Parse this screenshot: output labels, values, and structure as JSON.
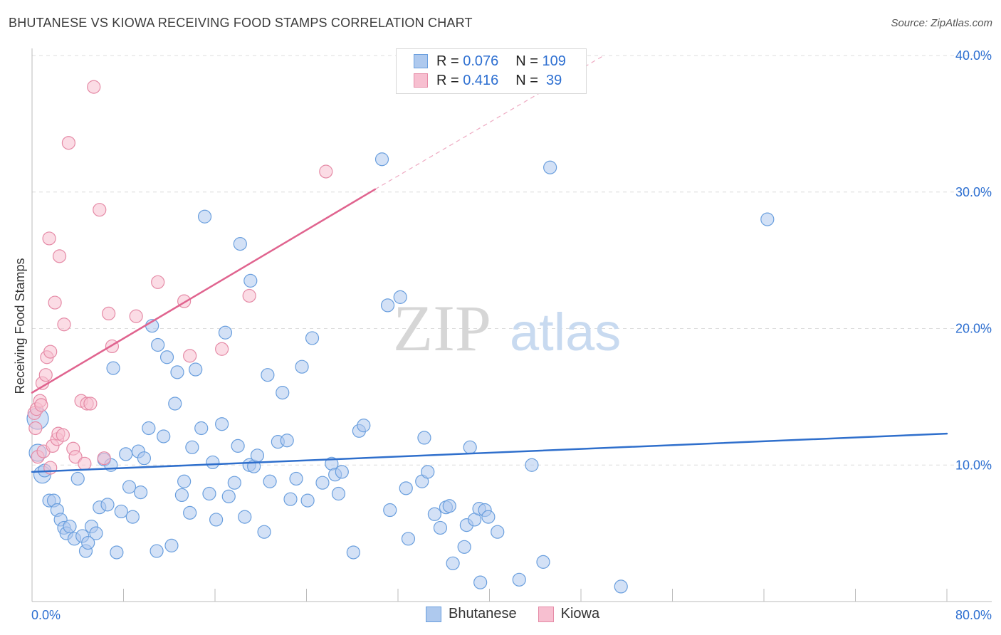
{
  "chart_data": {
    "type": "scatter",
    "title": "BHUTANESE VS KIOWA RECEIVING FOOD STAMPS CORRELATION CHART",
    "source": "Source: ZipAtlas.com",
    "xlabel": "",
    "ylabel": "Receiving Food Stamps",
    "xlim": [
      0,
      80
    ],
    "ylim": [
      0,
      40
    ],
    "x_tick_labels": [
      "0.0%",
      "80.0%"
    ],
    "y_ticks": [
      {
        "value": 10,
        "label": "10.0%"
      },
      {
        "value": 20,
        "label": "20.0%"
      },
      {
        "value": 30,
        "label": "30.0%"
      },
      {
        "value": 40,
        "label": "40.0%"
      }
    ],
    "grid": true,
    "watermark": {
      "part1": "ZIP",
      "part2": "atlas"
    },
    "stats": [
      {
        "r_label": "R = ",
        "r_value": "0.076",
        "n_label": "N = ",
        "n_value": "109"
      },
      {
        "r_label": "R = ",
        "r_value": "0.416",
        "n_label": "N = ",
        "n_value": " 39"
      }
    ],
    "series": [
      {
        "name": "Bhutanese",
        "fill": "#aec9ee",
        "stroke": "#6a9fde",
        "line_color": "#2f6fcc",
        "trend": {
          "x0": 0,
          "y0": 9.5,
          "x1": 80,
          "y1": 12.3
        },
        "points": [
          [
            0.5,
            13.4,
            "L"
          ],
          [
            0.5,
            10.9,
            "M"
          ],
          [
            0.9,
            9.3,
            "M"
          ],
          [
            1.1,
            9.6
          ],
          [
            1.5,
            7.4
          ],
          [
            1.9,
            7.4
          ],
          [
            2.2,
            6.7
          ],
          [
            2.5,
            6.0
          ],
          [
            2.8,
            5.4
          ],
          [
            3.0,
            5.0
          ],
          [
            3.3,
            5.5
          ],
          [
            3.7,
            4.6
          ],
          [
            4.0,
            9.0
          ],
          [
            4.4,
            4.8
          ],
          [
            4.7,
            3.7
          ],
          [
            4.9,
            4.3
          ],
          [
            5.2,
            5.5
          ],
          [
            5.6,
            5.0
          ],
          [
            5.9,
            6.9
          ],
          [
            6.3,
            10.4
          ],
          [
            6.6,
            7.1
          ],
          [
            6.9,
            10.0
          ],
          [
            7.1,
            17.1
          ],
          [
            7.4,
            3.6
          ],
          [
            7.8,
            6.6
          ],
          [
            8.2,
            10.8
          ],
          [
            8.5,
            8.4
          ],
          [
            8.8,
            6.2
          ],
          [
            9.3,
            11.0
          ],
          [
            9.5,
            8.0
          ],
          [
            9.8,
            10.5
          ],
          [
            10.2,
            12.7
          ],
          [
            10.5,
            20.2
          ],
          [
            10.9,
            3.7
          ],
          [
            11.0,
            18.8
          ],
          [
            11.8,
            17.9
          ],
          [
            11.5,
            12.1
          ],
          [
            12.2,
            4.1
          ],
          [
            12.5,
            14.5
          ],
          [
            12.7,
            16.8
          ],
          [
            13.1,
            7.8
          ],
          [
            13.3,
            8.8
          ],
          [
            13.8,
            6.5
          ],
          [
            14.0,
            11.3
          ],
          [
            14.3,
            17.0
          ],
          [
            14.8,
            12.7
          ],
          [
            15.1,
            28.2
          ],
          [
            15.5,
            7.9
          ],
          [
            15.8,
            10.2
          ],
          [
            16.1,
            6.0
          ],
          [
            16.6,
            13.0
          ],
          [
            16.9,
            19.7
          ],
          [
            17.2,
            7.7
          ],
          [
            17.7,
            8.7
          ],
          [
            18.0,
            11.4
          ],
          [
            18.2,
            26.2
          ],
          [
            18.6,
            6.2
          ],
          [
            19.1,
            23.5
          ],
          [
            19.0,
            10.0
          ],
          [
            19.4,
            9.9
          ],
          [
            19.7,
            10.7
          ],
          [
            20.3,
            5.1
          ],
          [
            20.6,
            16.6
          ],
          [
            20.8,
            8.8
          ],
          [
            21.5,
            11.7
          ],
          [
            21.9,
            15.3
          ],
          [
            22.3,
            11.8
          ],
          [
            22.6,
            7.5
          ],
          [
            23.1,
            9.0
          ],
          [
            23.6,
            17.2
          ],
          [
            24.1,
            7.4
          ],
          [
            24.5,
            19.3
          ],
          [
            25.4,
            8.7
          ],
          [
            26.2,
            10.1
          ],
          [
            26.5,
            9.3
          ],
          [
            26.8,
            7.9
          ],
          [
            27.1,
            9.5
          ],
          [
            28.1,
            3.6
          ],
          [
            28.6,
            12.5
          ],
          [
            29.0,
            12.9
          ],
          [
            30.6,
            32.4
          ],
          [
            31.1,
            21.7
          ],
          [
            31.3,
            6.7
          ],
          [
            32.2,
            22.3
          ],
          [
            32.7,
            8.3
          ],
          [
            32.9,
            4.6
          ],
          [
            34.3,
            12.0
          ],
          [
            34.1,
            8.8
          ],
          [
            34.6,
            9.5
          ],
          [
            35.2,
            6.4
          ],
          [
            35.7,
            5.4
          ],
          [
            36.2,
            6.9
          ],
          [
            36.5,
            7.0
          ],
          [
            36.8,
            2.8
          ],
          [
            37.8,
            4.0
          ],
          [
            38.0,
            5.6
          ],
          [
            38.3,
            11.3
          ],
          [
            38.7,
            6.0
          ],
          [
            39.1,
            6.8
          ],
          [
            39.2,
            1.4
          ],
          [
            39.6,
            6.7
          ],
          [
            39.9,
            6.2
          ],
          [
            40.7,
            5.1
          ],
          [
            42.6,
            1.6
          ],
          [
            43.7,
            10.0
          ],
          [
            44.7,
            2.9
          ],
          [
            45.3,
            31.8
          ],
          [
            51.5,
            1.1
          ],
          [
            64.3,
            28.0
          ]
        ]
      },
      {
        "name": "Kiowa",
        "fill": "#f7bfd0",
        "stroke": "#e58aa6",
        "line_color": "#e0648f",
        "trend": {
          "x0": 0,
          "y0": 15.3,
          "x1": 30,
          "y1": 30.2
        },
        "trend_ext": {
          "x0": 30,
          "y0": 30.2,
          "x1": 50,
          "y1": 40.0
        },
        "points": [
          [
            0.2,
            13.8
          ],
          [
            0.3,
            12.7
          ],
          [
            0.4,
            14.1
          ],
          [
            0.5,
            10.6
          ],
          [
            0.7,
            14.7
          ],
          [
            0.8,
            14.4
          ],
          [
            0.9,
            16.0
          ],
          [
            1.0,
            11.0
          ],
          [
            1.2,
            16.6
          ],
          [
            1.3,
            17.9
          ],
          [
            1.5,
            26.6
          ],
          [
            1.6,
            18.3
          ],
          [
            1.6,
            9.8
          ],
          [
            1.8,
            11.4
          ],
          [
            2.0,
            21.9
          ],
          [
            2.2,
            11.9
          ],
          [
            2.3,
            12.3
          ],
          [
            2.4,
            25.3
          ],
          [
            2.7,
            12.2
          ],
          [
            2.8,
            20.3
          ],
          [
            3.2,
            33.6
          ],
          [
            3.6,
            11.2
          ],
          [
            3.8,
            10.6
          ],
          [
            4.3,
            14.7
          ],
          [
            4.6,
            10.1
          ],
          [
            4.8,
            14.5
          ],
          [
            5.1,
            14.5
          ],
          [
            5.4,
            37.7
          ],
          [
            5.9,
            28.7
          ],
          [
            6.3,
            10.5
          ],
          [
            6.7,
            21.1
          ],
          [
            7.0,
            18.7
          ],
          [
            9.1,
            20.9
          ],
          [
            11.0,
            23.4
          ],
          [
            13.3,
            22.0
          ],
          [
            13.8,
            18.0
          ],
          [
            16.6,
            18.5
          ],
          [
            19.0,
            22.4
          ],
          [
            25.7,
            31.5
          ]
        ]
      }
    ]
  }
}
